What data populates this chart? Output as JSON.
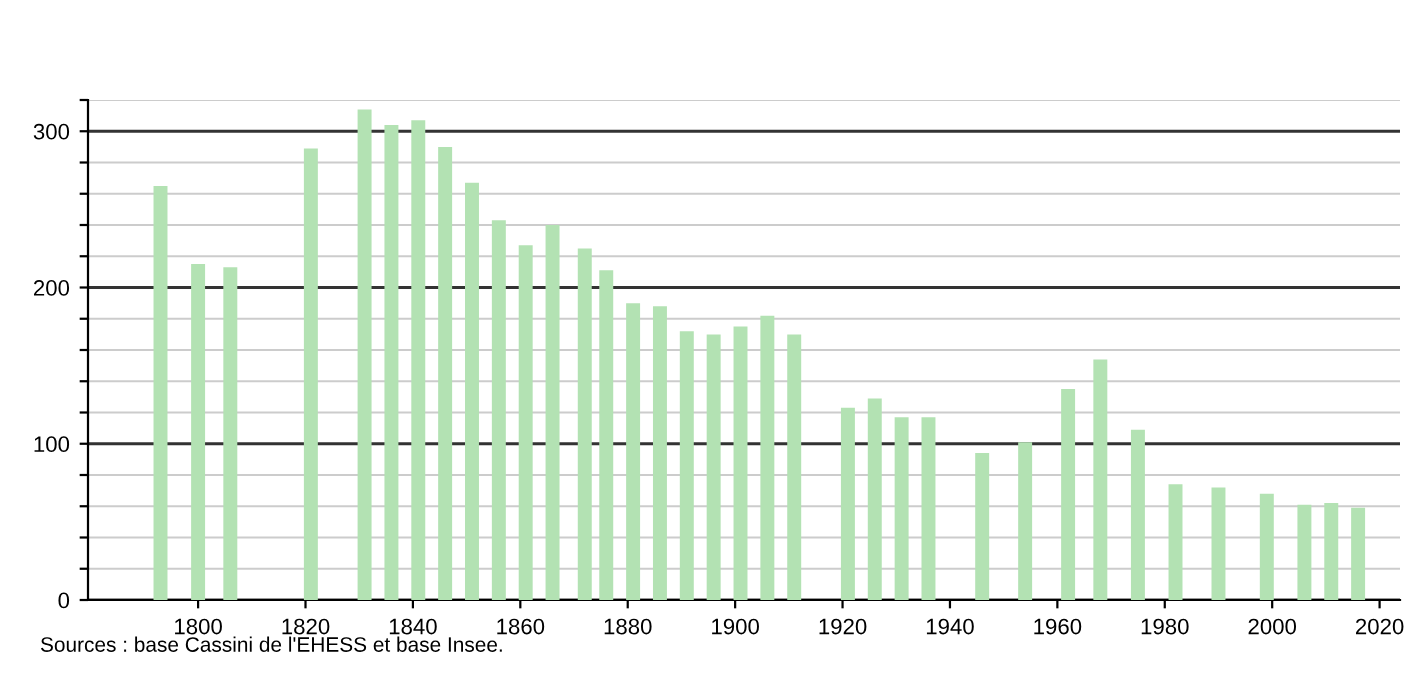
{
  "chart_data": {
    "type": "bar",
    "x": [
      1793,
      1800,
      1806,
      1821,
      1831,
      1836,
      1841,
      1846,
      1851,
      1856,
      1861,
      1866,
      1872,
      1876,
      1881,
      1886,
      1891,
      1896,
      1901,
      1906,
      1911,
      1921,
      1926,
      1931,
      1936,
      1946,
      1954,
      1962,
      1968,
      1975,
      1982,
      1990,
      1999,
      2006,
      2011,
      2016
    ],
    "values": [
      265,
      215,
      213,
      289,
      314,
      304,
      307,
      290,
      267,
      243,
      227,
      240,
      225,
      211,
      190,
      188,
      172,
      170,
      175,
      182,
      170,
      123,
      129,
      117,
      117,
      94,
      101,
      135,
      154,
      109,
      74,
      72,
      68,
      61,
      62,
      59
    ],
    "color": "#b3e2b3",
    "xlim": [
      1779.5,
      2023.8
    ],
    "xticks": [
      1800,
      1820,
      1840,
      1860,
      1880,
      1900,
      1920,
      1940,
      1960,
      1980,
      2000,
      2020
    ],
    "ylim": [
      0,
      320
    ],
    "yticks": [
      0,
      {
        "value": 20,
        "label": null
      },
      {
        "value": 40,
        "label": null
      },
      {
        "value": 60,
        "label": null
      },
      {
        "value": 80,
        "label": null
      },
      100,
      {
        "value": 120,
        "label": null
      },
      {
        "value": 140,
        "label": null
      },
      {
        "value": 160,
        "label": null
      },
      {
        "value": 180,
        "label": null
      },
      200,
      {
        "value": 220,
        "label": null
      },
      {
        "value": 240,
        "label": null
      },
      {
        "value": 260,
        "label": null
      },
      {
        "value": 280,
        "label": null
      },
      300,
      {
        "value": 320,
        "label": null
      }
    ],
    "grid": "y",
    "annotations": [
      "Sources : base Cassini de l'EHESS et base Insee."
    ]
  }
}
